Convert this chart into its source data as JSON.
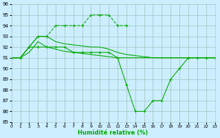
{
  "xlabel": "Humidité relative (%)",
  "background_color": "#cceeff",
  "grid_color": "#aacccc",
  "line_color": "#00aa00",
  "ylim": [
    85,
    96
  ],
  "xlim": [
    0,
    23
  ],
  "yticks": [
    85,
    86,
    87,
    88,
    89,
    90,
    91,
    92,
    93,
    94,
    95,
    96
  ],
  "xticks": [
    0,
    1,
    2,
    3,
    4,
    5,
    6,
    7,
    8,
    9,
    10,
    11,
    12,
    13,
    14,
    15,
    16,
    17,
    18,
    19,
    20,
    21,
    22,
    23
  ],
  "series": [
    {
      "x": [
        0,
        1,
        2,
        3,
        4,
        5,
        6,
        7,
        8,
        9,
        10,
        11,
        12,
        13
      ],
      "y": [
        91,
        91,
        92,
        93,
        93,
        94,
        94,
        94,
        94,
        95,
        95,
        95,
        94,
        94
      ],
      "marker": "+"
    },
    {
      "x": [
        0,
        1,
        2,
        3,
        4,
        5,
        6,
        7,
        8,
        9,
        10,
        11,
        12,
        13,
        14,
        15,
        16,
        17,
        18,
        19,
        20,
        21,
        22,
        23
      ],
      "y": [
        91,
        91,
        92,
        93,
        93,
        92.5,
        92.3,
        92.2,
        92.1,
        92,
        92,
        91.8,
        91.5,
        91.3,
        91.2,
        91.1,
        91,
        91,
        91,
        91,
        91,
        91,
        91,
        91
      ],
      "marker": null
    },
    {
      "x": [
        0,
        1,
        2,
        3,
        4,
        5,
        6,
        7,
        8,
        9,
        10,
        11,
        12,
        13,
        14,
        15,
        16,
        17,
        18,
        19,
        20,
        21,
        22,
        23
      ],
      "y": [
        91,
        91,
        91.5,
        92.5,
        92,
        91.8,
        91.6,
        91.5,
        91.4,
        91.3,
        91.2,
        91.1,
        91,
        91,
        91,
        91,
        91,
        91,
        91,
        91,
        91,
        91,
        91,
        91
      ],
      "marker": null
    },
    {
      "x": [
        0,
        1,
        2,
        3,
        4,
        5,
        6,
        7,
        8,
        9,
        10,
        11,
        12,
        13,
        14,
        15,
        16,
        17,
        18,
        19,
        20,
        21,
        22,
        23
      ],
      "y": [
        91,
        91,
        92,
        92,
        92,
        92,
        92,
        91.5,
        91.5,
        91.5,
        91.5,
        91.5,
        91,
        88.5,
        86,
        86,
        87,
        87,
        89,
        90,
        91,
        91,
        91,
        91
      ],
      "marker": "+"
    }
  ]
}
